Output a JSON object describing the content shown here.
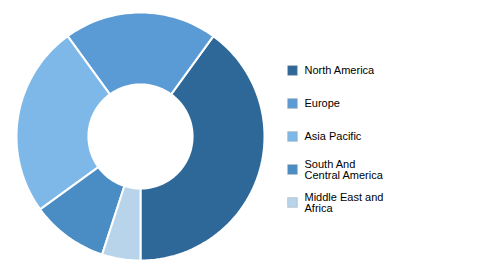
{
  "chart_data": {
    "type": "donut",
    "categories": [
      "North America",
      "Europe",
      "Asia Pacific",
      "South And\nCentral America",
      "Middle East and\nAfrica"
    ],
    "values": [
      40,
      20,
      25,
      10,
      5
    ],
    "colors": [
      "#2e6899",
      "#5b9bd5",
      "#7db8e8",
      "#4a8cc4",
      "#b8d4ea"
    ],
    "legend": "right"
  }
}
